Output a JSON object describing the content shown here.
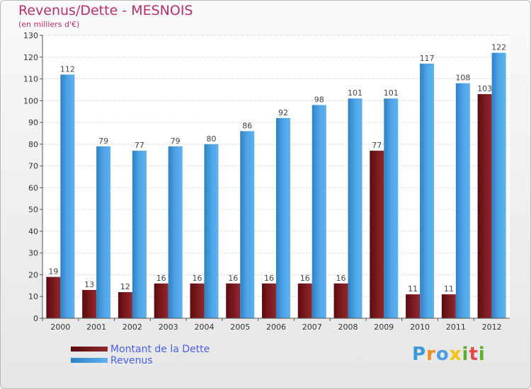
{
  "header": {
    "title": "Revenus/Dette - MESNOIS",
    "subtitle": "(en milliers d'€)"
  },
  "colors": {
    "dette": "#7a1518",
    "revenus": "#4a9fe2",
    "title": "#b5306a",
    "legend_text": "#4a5ee8"
  },
  "legend": {
    "items": [
      {
        "label": "Montant de la Dette",
        "color": "#7a1518"
      },
      {
        "label": "Revenus",
        "color": "#4a9fe2"
      }
    ]
  },
  "logo": {
    "letters": [
      "P",
      "r",
      "o",
      "x",
      "i",
      "t",
      "i"
    ],
    "colors": [
      "#3a9ad9",
      "#f28c1c",
      "#4a9fe2",
      "#f2c200",
      "#5bb030",
      "#e24a4a",
      "#5bb030"
    ]
  },
  "chart_data": {
    "type": "bar",
    "title": "Revenus/Dette - MESNOIS",
    "subtitle": "(en milliers d'€)",
    "categories": [
      "2000",
      "2001",
      "2002",
      "2003",
      "2004",
      "2005",
      "2006",
      "2007",
      "2008",
      "2009",
      "2010",
      "2011",
      "2012"
    ],
    "series": [
      {
        "name": "Montant de la Dette",
        "values": [
          19,
          13,
          12,
          16,
          16,
          16,
          16,
          16,
          16,
          77,
          11,
          11,
          103
        ]
      },
      {
        "name": "Revenus",
        "values": [
          112,
          79,
          77,
          79,
          80,
          86,
          92,
          98,
          101,
          101,
          117,
          108,
          122
        ]
      }
    ],
    "ylim": [
      0,
      130
    ],
    "yticks": [
      0,
      10,
      20,
      30,
      40,
      50,
      60,
      70,
      80,
      90,
      100,
      110,
      120,
      130
    ],
    "grid": true,
    "legend_position": "bottom-left"
  }
}
